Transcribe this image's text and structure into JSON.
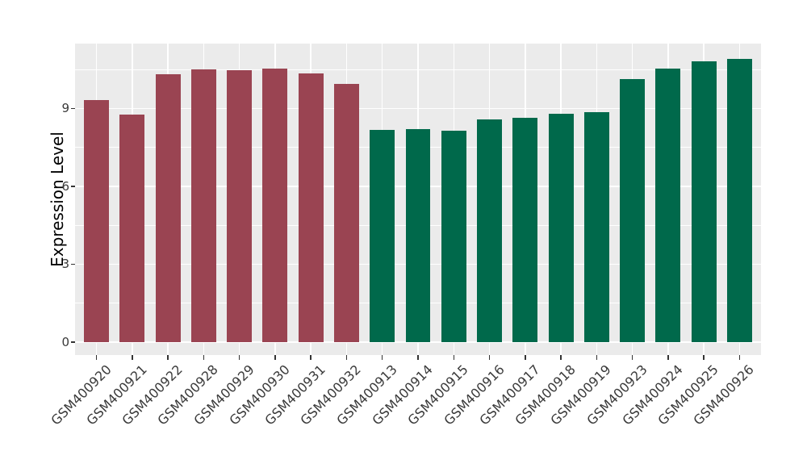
{
  "chart_data": {
    "type": "bar",
    "title": "",
    "ylabel": "Expression Level",
    "xlabel": "",
    "categories": [
      "GSM400920",
      "GSM400921",
      "GSM400922",
      "GSM400928",
      "GSM400929",
      "GSM400930",
      "GSM400931",
      "GSM400932",
      "GSM400913",
      "GSM400914",
      "GSM400915",
      "GSM400916",
      "GSM400917",
      "GSM400918",
      "GSM400919",
      "GSM400923",
      "GSM400924",
      "GSM400925",
      "GSM400926"
    ],
    "values": [
      9.33,
      8.75,
      10.32,
      10.5,
      10.46,
      10.53,
      10.36,
      9.96,
      8.18,
      8.22,
      8.13,
      8.57,
      8.63,
      8.81,
      8.86,
      10.13,
      10.53,
      10.83,
      10.9
    ],
    "bar_group_index": [
      0,
      0,
      0,
      0,
      0,
      0,
      0,
      0,
      1,
      1,
      1,
      1,
      1,
      1,
      1,
      1,
      1,
      1,
      1
    ],
    "group_colors": [
      "#9A4452",
      "#00694B"
    ],
    "ylim": [
      -0.5,
      11.5
    ],
    "yticks": [
      0,
      3,
      6,
      9
    ],
    "yticks_minor": [
      1.5,
      4.5,
      7.5,
      10.5
    ],
    "x_tick_rotation_deg": 45,
    "bar_width_fraction": 0.7,
    "x_edge_padding_units": 0.6,
    "grid": true,
    "legend": false,
    "panel_background": "#EBEBEB",
    "gridline_color": "#FFFFFF",
    "tick_color": "#333333",
    "axis_text_color": "#3A3A3A",
    "axis_title_color": "#000000",
    "figure_background": "#FFFFFF"
  }
}
